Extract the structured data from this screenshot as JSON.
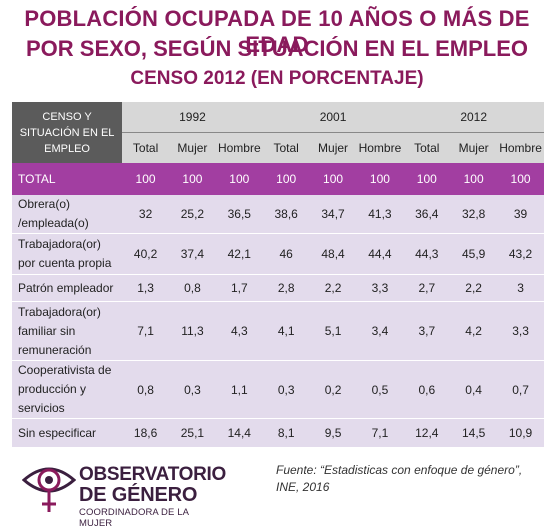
{
  "title": {
    "line1": "POBLACIÓN OCUPADA DE 10 AÑOS O MÁS DE EDAD",
    "line2": "POR SEXO, SEGÚN SITUACIÓN EN EL EMPLEO",
    "line3": "CENSO 2012 (EN PORCENTAJE)"
  },
  "table": {
    "category_header": [
      "CENSO Y",
      "SITUACIÓN EN EL",
      "EMPLEO"
    ],
    "years": [
      "1992",
      "2001",
      "2012"
    ],
    "sub_headers": [
      "Total",
      "Mujer",
      "Hombre",
      "Total",
      "Mujer",
      "Hombre",
      "Total",
      "Mujer",
      "Hombre"
    ],
    "rows": [
      {
        "label": [
          "TOTAL"
        ],
        "values": [
          "100",
          "100",
          "100",
          "100",
          "100",
          "100",
          "100",
          "100",
          "100"
        ]
      },
      {
        "label": [
          "Obrera(o)",
          "/empleada(o)"
        ],
        "values": [
          "32",
          "25,2",
          "36,5",
          "38,6",
          "34,7",
          "41,3",
          "36,4",
          "32,8",
          "39"
        ]
      },
      {
        "label": [
          "Trabajadora(or)",
          "por cuenta propia"
        ],
        "values": [
          "40,2",
          "37,4",
          "42,1",
          "46",
          "48,4",
          "44,4",
          "44,3",
          "45,9",
          "43,2"
        ]
      },
      {
        "label": [
          "Patrón empleador"
        ],
        "values": [
          "1,3",
          "0,8",
          "1,7",
          "2,8",
          "2,2",
          "3,3",
          "2,7",
          "2,2",
          "3"
        ]
      },
      {
        "label": [
          "Trabajadora(or)",
          "familiar sin",
          "remuneración"
        ],
        "values": [
          "7,1",
          "11,3",
          "4,3",
          "4,1",
          "5,1",
          "3,4",
          "3,7",
          "4,2",
          "3,3"
        ]
      },
      {
        "label": [
          "Cooperativista de",
          "producción y",
          "servicios"
        ],
        "values": [
          "0,8",
          "0,3",
          "1,1",
          "0,3",
          "0,2",
          "0,5",
          "0,6",
          "0,4",
          "0,7"
        ]
      },
      {
        "label": [
          "Sin especificar"
        ],
        "values": [
          "18,6",
          "25,1",
          "14,4",
          "8,1",
          "9,5",
          "7,1",
          "12,4",
          "14,5",
          "10,9"
        ]
      }
    ]
  },
  "logo": {
    "line1": "OBSERVATORIO",
    "line2": "DE GÉNERO",
    "line3": "COORDINADORA DE LA MUJER",
    "color": "#3b1f3f",
    "accent": "#8a1a5c"
  },
  "source": {
    "line1": "Fuente: “Estadisticas con enfoque de género”,",
    "line2": "INE, 2016"
  },
  "colors": {
    "title": "#8a1a5c",
    "total_row": "#a23ea1",
    "body_rows": "#e3dbec",
    "header": "#d7d7d7",
    "category_header": "#5b5b5b"
  }
}
